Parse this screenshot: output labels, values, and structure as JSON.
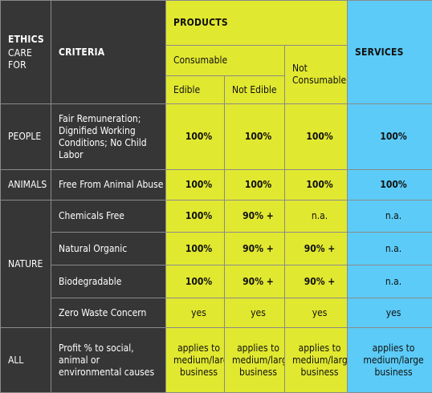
{
  "headers": {
    "ethics": "ETHICS",
    "care_for": [
      "CARE",
      "FOR"
    ],
    "criteria": "CRITERIA",
    "products": "PRODUCTS",
    "services": "SERVICES",
    "consumable": "Consumable",
    "edible": "Edible",
    "not_edible": "Not Edible",
    "not_consumable": [
      "Not",
      "Consumable"
    ]
  },
  "groups": {
    "people": "PEOPLE",
    "animals": "ANIMALS",
    "nature": "NATURE",
    "all": "ALL"
  },
  "rows": [
    {
      "criteria": [
        "Fair Remuneration;",
        "Dignified Working",
        "Conditions; No Child",
        "Labor"
      ],
      "values": [
        "100%",
        "100%",
        "100%",
        "100%"
      ]
    },
    {
      "criteria": [
        "Free From Animal Abuse"
      ],
      "values": [
        "100%",
        "100%",
        "100%",
        "100%"
      ]
    },
    {
      "criteria": [
        "Chemicals Free"
      ],
      "values": [
        "100%",
        "90% +",
        "n.a.",
        "n.a."
      ]
    },
    {
      "criteria": [
        "Natural Organic"
      ],
      "values": [
        "100%",
        "90% +",
        "90% +",
        "n.a."
      ]
    },
    {
      "criteria": [
        "Biodegradable"
      ],
      "values": [
        "100%",
        "90% +",
        "90% +",
        "n.a."
      ]
    },
    {
      "criteria": [
        "Zero Waste Concern"
      ],
      "values": [
        "yes",
        "yes",
        "yes",
        "yes"
      ]
    },
    {
      "criteria": [
        "Profit % to social,",
        "animal or",
        "environmental causes"
      ],
      "values": [
        [
          "applies to",
          "medium/large",
          "business"
        ],
        [
          "applies to",
          "medium/large",
          "business"
        ],
        [
          "applies to",
          "medium/large",
          "business"
        ],
        [
          "applies to",
          "medium/large",
          "business"
        ]
      ]
    }
  ],
  "colors": {
    "dark": "#363636",
    "yellow": "#e1e830",
    "blue": "#5ccbf7"
  }
}
